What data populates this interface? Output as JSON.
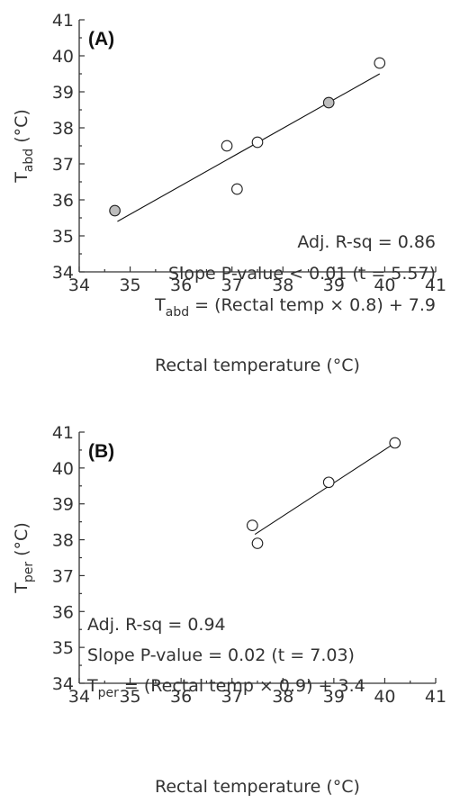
{
  "chart_data": [
    {
      "type": "scatter",
      "panel_label": "(A)",
      "xlabel": "Rectal temperature (°C)",
      "ylabel_main": "T",
      "ylabel_sub": "abd",
      "ylabel_unit": " (°C)",
      "xlim": [
        34,
        41
      ],
      "ylim": [
        34,
        41
      ],
      "xticks": [
        "34",
        "35",
        "36",
        "37",
        "38",
        "39",
        "40",
        "41"
      ],
      "yticks": [
        "34",
        "35",
        "36",
        "37",
        "38",
        "39",
        "40",
        "41"
      ],
      "points": [
        {
          "x": 34.7,
          "y": 35.7,
          "fill": "#bdbdbd"
        },
        {
          "x": 36.9,
          "y": 37.5,
          "fill": "#ffffff"
        },
        {
          "x": 37.1,
          "y": 36.3,
          "fill": "#ffffff"
        },
        {
          "x": 37.5,
          "y": 37.6,
          "fill": "#ffffff"
        },
        {
          "x": 38.9,
          "y": 38.7,
          "fill": "#bdbdbd"
        },
        {
          "x": 39.9,
          "y": 39.8,
          "fill": "#ffffff"
        }
      ],
      "fit_line": {
        "x": [
          34.75,
          39.9
        ],
        "y": [
          35.4,
          39.5
        ]
      },
      "annotations": {
        "r2": "Adj. R-sq = 0.86",
        "pval": "Slope P-value < 0.01 (t = 5.57)",
        "eq_main": "T",
        "eq_sub": "abd",
        "eq_rest": " = (Rectal temp × 0.8) + 7.9"
      }
    },
    {
      "type": "scatter",
      "panel_label": "(B)",
      "xlabel": "Rectal temperature (°C)",
      "ylabel_main": "T",
      "ylabel_sub": "per",
      "ylabel_unit": " (°C)",
      "xlim": [
        34,
        41
      ],
      "ylim": [
        34,
        41
      ],
      "xticks": [
        "34",
        "35",
        "36",
        "37",
        "38",
        "39",
        "40",
        "41"
      ],
      "yticks": [
        "34",
        "35",
        "36",
        "37",
        "38",
        "39",
        "40",
        "41"
      ],
      "points": [
        {
          "x": 37.4,
          "y": 38.4,
          "fill": "#ffffff"
        },
        {
          "x": 37.5,
          "y": 37.9,
          "fill": "#ffffff"
        },
        {
          "x": 38.9,
          "y": 39.6,
          "fill": "#ffffff"
        },
        {
          "x": 40.2,
          "y": 40.7,
          "fill": "#ffffff"
        }
      ],
      "fit_line": {
        "x": [
          37.45,
          40.15
        ],
        "y": [
          38.15,
          40.65
        ]
      },
      "annotations": {
        "r2": "Adj. R-sq = 0.94",
        "pval": "Slope P-value = 0.02 (t = 7.03)",
        "eq_main": "T",
        "eq_sub": "per",
        "eq_rest": " = (Rectal temp × 0.9) + 3.4"
      }
    }
  ]
}
